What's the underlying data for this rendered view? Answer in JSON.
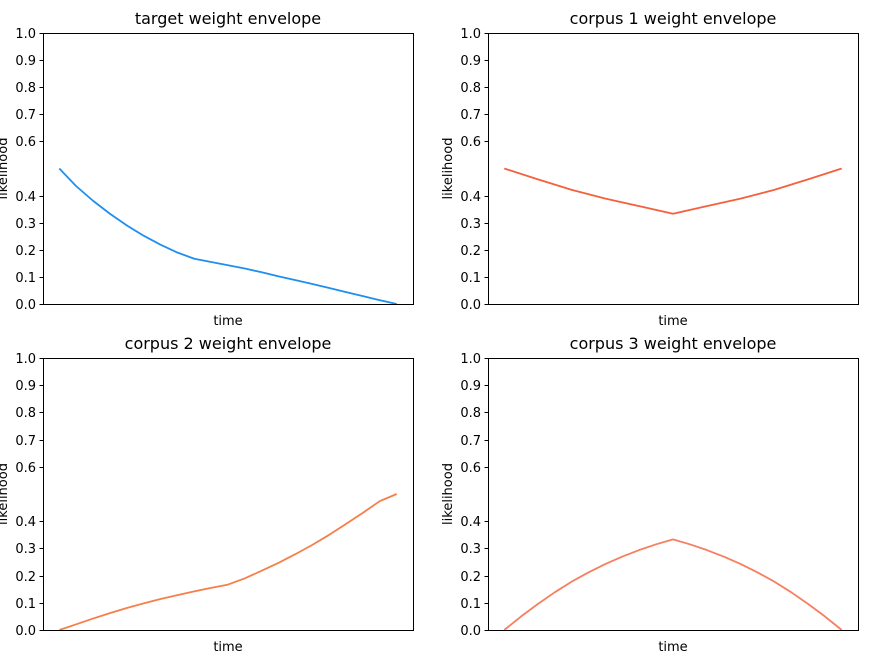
{
  "chart_data": [
    {
      "type": "line",
      "title": "target weight envelope",
      "xlabel": "time",
      "ylabel": "likelihood",
      "ylim": [
        0,
        1
      ],
      "yticks": [
        "0.0",
        "0.1",
        "0.2",
        "0.3",
        "0.4",
        "0.6",
        "0.7",
        "0.8",
        "0.9",
        "1.0"
      ],
      "grid": false,
      "series": [
        {
          "color": "#1f8fef",
          "x": [
            0,
            0.05,
            0.1,
            0.15,
            0.2,
            0.25,
            0.3,
            0.35,
            0.4,
            0.45,
            0.5,
            0.55,
            0.6,
            0.65,
            0.7,
            0.75,
            0.8,
            0.85,
            0.9,
            0.95,
            1.0
          ],
          "y": [
            0.5,
            0.435,
            0.381,
            0.333,
            0.29,
            0.252,
            0.219,
            0.19,
            0.167,
            0.155,
            0.143,
            0.131,
            0.117,
            0.102,
            0.088,
            0.074,
            0.059,
            0.044,
            0.029,
            0.014,
            0.0
          ]
        }
      ]
    },
    {
      "type": "line",
      "title": "corpus 1 weight envelope",
      "xlabel": "time",
      "ylabel": "likelihood",
      "ylim": [
        0,
        1
      ],
      "yticks": [
        "0.0",
        "0.1",
        "0.2",
        "0.3",
        "0.4",
        "0.6",
        "0.7",
        "0.8",
        "0.9",
        "1.0"
      ],
      "grid": false,
      "series": [
        {
          "color": "#f5603c",
          "x": [
            0,
            0.1,
            0.2,
            0.3,
            0.4,
            0.5,
            0.6,
            0.7,
            0.8,
            0.9,
            1.0
          ],
          "y": [
            0.5,
            0.46,
            0.421,
            0.389,
            0.361,
            0.333,
            0.361,
            0.389,
            0.421,
            0.46,
            0.5
          ]
        }
      ]
    },
    {
      "type": "line",
      "title": "corpus 2 weight envelope",
      "xlabel": "time",
      "ylabel": "likelihood",
      "ylim": [
        0,
        1
      ],
      "yticks": [
        "0.0",
        "0.1",
        "0.2",
        "0.3",
        "0.4",
        "0.6",
        "0.7",
        "0.8",
        "0.9",
        "1.0"
      ],
      "grid": false,
      "series": [
        {
          "color": "#f57f4a",
          "x": [
            0,
            0.05,
            0.1,
            0.15,
            0.2,
            0.25,
            0.3,
            0.35,
            0.4,
            0.45,
            0.5,
            0.55,
            0.6,
            0.65,
            0.7,
            0.75,
            0.8,
            0.85,
            0.9,
            0.95,
            1.0
          ],
          "y": [
            0.0,
            0.021,
            0.042,
            0.062,
            0.081,
            0.098,
            0.114,
            0.128,
            0.142,
            0.155,
            0.167,
            0.19,
            0.218,
            0.247,
            0.279,
            0.313,
            0.35,
            0.39,
            0.431,
            0.474,
            0.5
          ]
        }
      ]
    },
    {
      "type": "line",
      "title": "corpus 3 weight envelope",
      "xlabel": "time",
      "ylabel": "likelihood",
      "ylim": [
        0,
        1
      ],
      "yticks": [
        "0.0",
        "0.1",
        "0.2",
        "0.3",
        "0.4",
        "0.6",
        "0.7",
        "0.8",
        "0.9",
        "1.0"
      ],
      "grid": false,
      "series": [
        {
          "color": "#f57f60",
          "x": [
            0,
            0.05,
            0.1,
            0.15,
            0.2,
            0.25,
            0.3,
            0.35,
            0.4,
            0.45,
            0.5,
            0.55,
            0.6,
            0.65,
            0.7,
            0.75,
            0.8,
            0.85,
            0.9,
            0.95,
            1.0
          ],
          "y": [
            0.0,
            0.05,
            0.096,
            0.139,
            0.178,
            0.212,
            0.243,
            0.27,
            0.294,
            0.315,
            0.333,
            0.315,
            0.294,
            0.27,
            0.243,
            0.212,
            0.178,
            0.139,
            0.096,
            0.05,
            0.0
          ]
        }
      ]
    }
  ]
}
